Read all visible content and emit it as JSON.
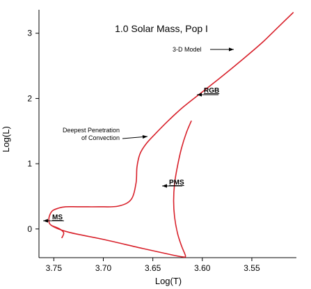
{
  "chart_data": {
    "type": "line",
    "title": "1.0 Solar Mass, Pop I",
    "xlabel": "Log(T)",
    "ylabel": "Log(L)",
    "xlim": [
      3.765,
      3.505
    ],
    "ylim": [
      -0.44,
      3.36
    ],
    "x_reversed": true,
    "x_ticks": [
      {
        "v": 3.75,
        "label": "3.75"
      },
      {
        "v": 3.7,
        "label": "3.70"
      },
      {
        "v": 3.65,
        "label": "3.65"
      },
      {
        "v": 3.6,
        "label": "3.60"
      },
      {
        "v": 3.55,
        "label": "3.55"
      }
    ],
    "y_ticks": [
      {
        "v": 0,
        "label": "0"
      },
      {
        "v": 1,
        "label": "1"
      },
      {
        "v": 2,
        "label": "2"
      },
      {
        "v": 3,
        "label": "3"
      }
    ],
    "series": [
      {
        "color": "#d8202a",
        "x": [
          3.611,
          3.616,
          3.621,
          3.625,
          3.628,
          3.629,
          3.628,
          3.625,
          3.621,
          3.618,
          3.617,
          3.619,
          3.63,
          3.66,
          3.7,
          3.735,
          3.752,
          3.755,
          3.752,
          3.745,
          3.738,
          3.725,
          3.705,
          3.685,
          3.672,
          3.667,
          3.666,
          3.663,
          3.657,
          3.648,
          3.635,
          3.62,
          3.6,
          3.58,
          3.56,
          3.54,
          3.525,
          3.508
        ],
        "y": [
          1.66,
          1.48,
          1.24,
          0.97,
          0.7,
          0.43,
          0.18,
          -0.07,
          -0.26,
          -0.37,
          -0.42,
          -0.43,
          -0.4,
          -0.3,
          -0.16,
          -0.05,
          0.05,
          0.15,
          0.27,
          0.32,
          0.34,
          0.34,
          0.34,
          0.35,
          0.45,
          0.7,
          0.95,
          1.15,
          1.3,
          1.45,
          1.65,
          1.86,
          2.1,
          2.34,
          2.59,
          2.85,
          3.07,
          3.32
        ]
      },
      {
        "color": "#d8202a",
        "x": [
          3.752,
          3.744,
          3.74,
          3.742
        ],
        "y": [
          0.05,
          0.0,
          -0.06,
          -0.14
        ]
      }
    ],
    "annotations": [
      {
        "id": "three_d_model",
        "lines": [
          "3-D Model"
        ],
        "x": 3.575,
        "y": 2.77,
        "bold": false
      },
      {
        "id": "rgb",
        "lines": [
          "RGB"
        ],
        "x": 3.585,
        "y": 2.07,
        "bold": true
      },
      {
        "id": "deepest",
        "lines": [
          "Deepest Penetration",
          "of Convection"
        ],
        "x": 3.636,
        "y": 1.42,
        "bold": false
      },
      {
        "id": "pms",
        "lines": [
          "PMS"
        ],
        "x": 3.616,
        "y": 0.67,
        "bold": true
      },
      {
        "id": "ms",
        "lines": [
          "MS"
        ],
        "x": 3.727,
        "y": 0.1,
        "bold": true
      }
    ]
  }
}
